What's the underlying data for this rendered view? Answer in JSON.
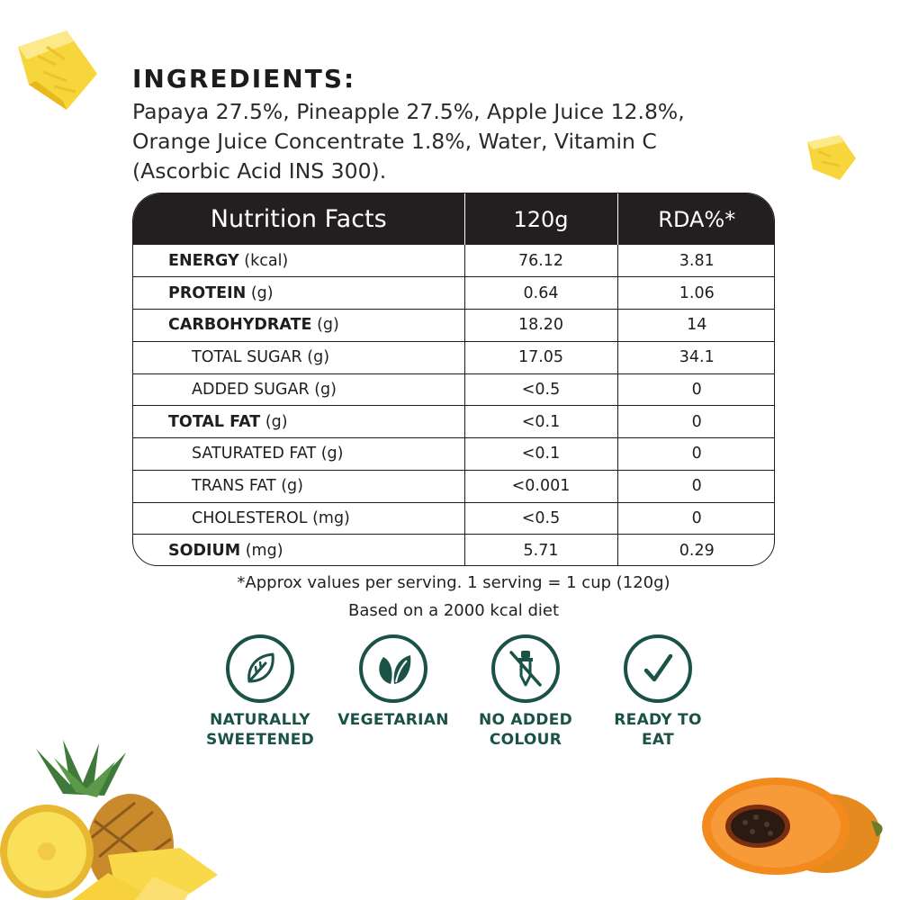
{
  "ingredients": {
    "title": "INGREDIENTS:",
    "line1": "Papaya 27.5%, Pineapple 27.5%, Apple Juice 12.8%,",
    "line2": "Orange Juice Concentrate 1.8%, Water, Vitamin C",
    "line3": "(Ascorbic Acid INS 300)."
  },
  "nutrition": {
    "headers": [
      "Nutrition Facts",
      "120g",
      "RDA%*"
    ],
    "rows": [
      {
        "name": "ENERGY",
        "unit": "(kcal)",
        "value": "76.12",
        "rda": "3.81"
      },
      {
        "name": "PROTEIN",
        "unit": "(g)",
        "value": "0.64",
        "rda": "1.06"
      },
      {
        "name": "CARBOHYDRATE",
        "unit": "(g)",
        "value": "18.20",
        "rda": "14"
      },
      {
        "name": "TOTAL SUGAR",
        "unit": "(g)",
        "value": "17.05",
        "rda": "34.1"
      },
      {
        "name": "ADDED SUGAR",
        "unit": "(g)",
        "value": "<0.5",
        "rda": "0"
      },
      {
        "name": "TOTAL FAT",
        "unit": "(g)",
        "value": "<0.1",
        "rda": "0"
      },
      {
        "name": "SATURATED FAT",
        "unit": "(g)",
        "value": "<0.1",
        "rda": "0"
      },
      {
        "name": "TRANS FAT",
        "unit": "(g)",
        "value": "<0.001",
        "rda": "0"
      },
      {
        "name": "CHOLESTEROL",
        "unit": "(mg)",
        "value": "<0.5",
        "rda": "0"
      },
      {
        "name": "SODIUM",
        "unit": "(mg)",
        "value": "5.71",
        "rda": "0.29"
      }
    ]
  },
  "footnote": {
    "line1": "*Approx values per serving. 1 serving = 1 cup (120g)",
    "line2": "Based on a 2000 kcal diet"
  },
  "badges": [
    {
      "icon": "leaf-icon",
      "line1": "NATURALLY",
      "line2": "SWEETENED"
    },
    {
      "icon": "vegetarian-leaf-icon",
      "line1": "VEGETARIAN",
      "line2": ""
    },
    {
      "icon": "no-dropper-icon",
      "line1": "NO ADDED",
      "line2": "COLOUR"
    },
    {
      "icon": "checkmark-icon",
      "line1": "READY TO",
      "line2": "EAT"
    }
  ],
  "colors": {
    "header_bg": "#231f20",
    "badge_green": "#1a5248",
    "pineapple_yellow": "#f6d23a",
    "papaya_orange": "#f07a1c"
  }
}
